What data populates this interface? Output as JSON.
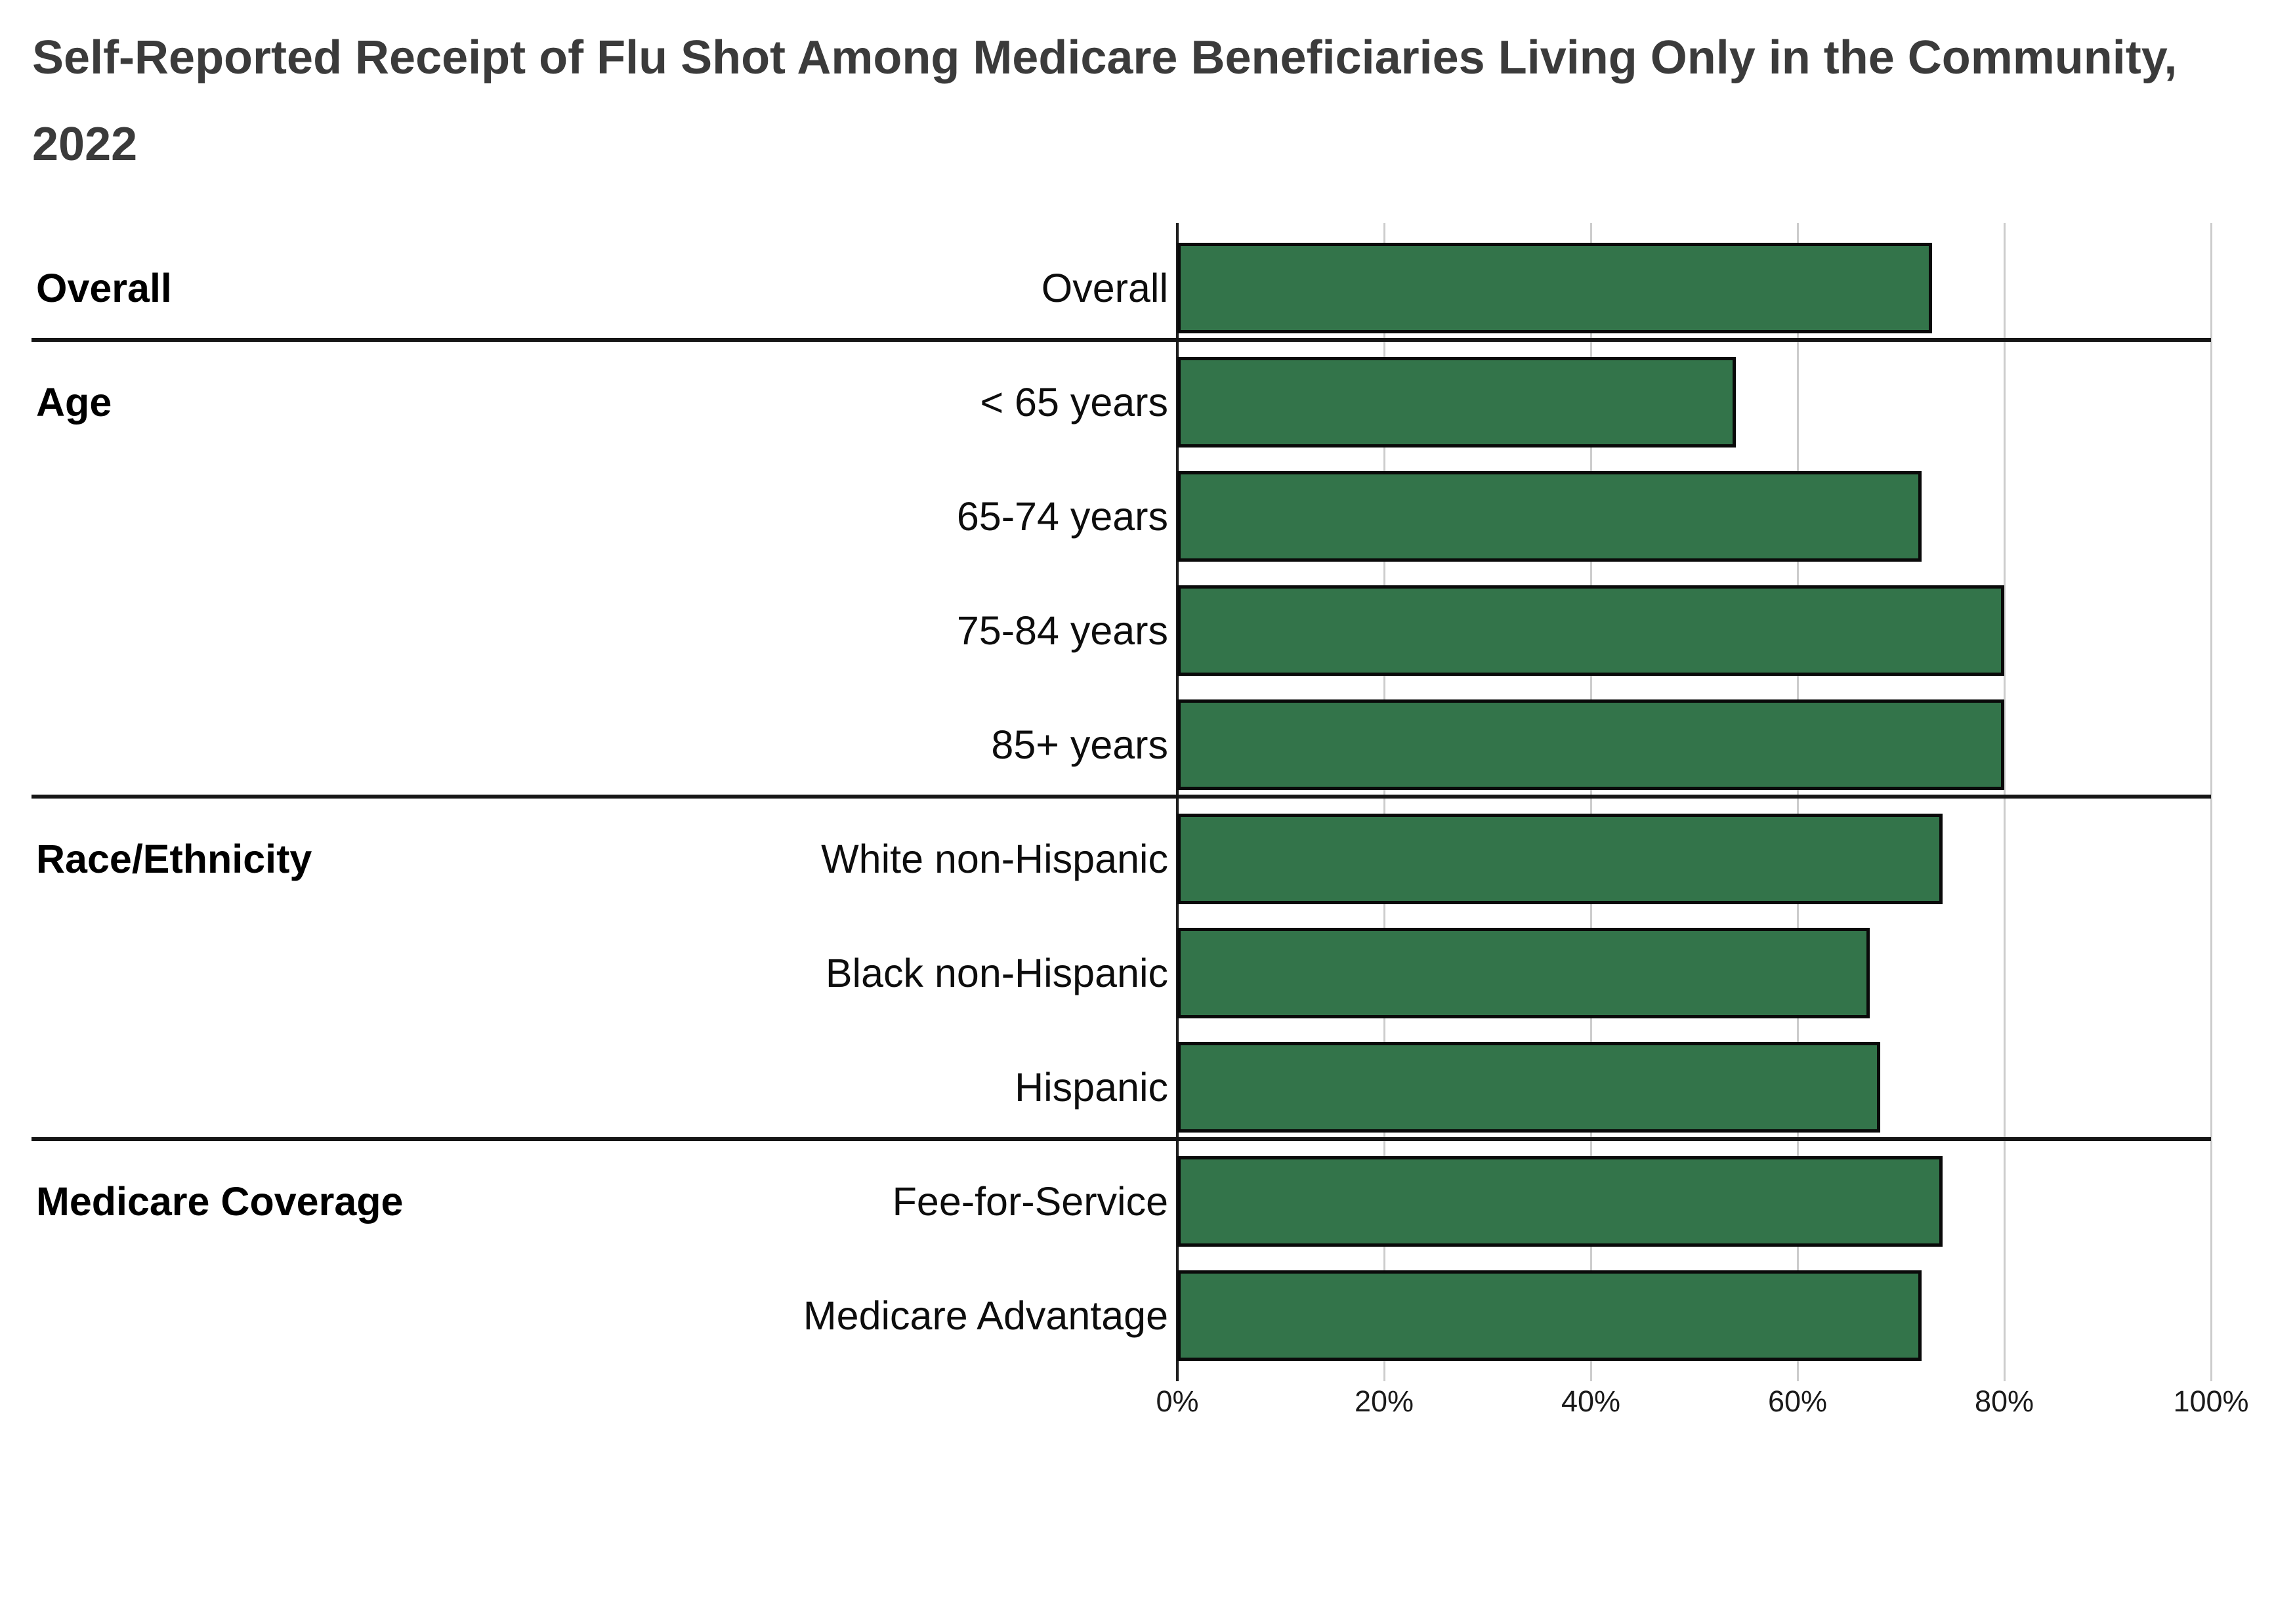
{
  "page": {
    "background": "#ffffff"
  },
  "title": {
    "text": "Self-Reported Receipt of Flu Shot Among Medicare Beneficiaries Living Only in the Community, 2022",
    "color": "#3b3b3b"
  },
  "chart_data": {
    "type": "bar",
    "orientation": "horizontal",
    "title": "Self-Reported Receipt of Flu Shot Among Medicare Beneficiaries Living Only in the Community, 2022",
    "unit": "%",
    "xlim": [
      0,
      100
    ],
    "x_ticks": [
      "0%",
      "20%",
      "40%",
      "60%",
      "80%",
      "100%"
    ],
    "grid": true,
    "legend": false,
    "bar_color": "#33744A",
    "bar_border_color": "#0a0a0a",
    "divider_color": "#161616",
    "gridline_color": "#cccccc",
    "axis_color": "#1f1f1f",
    "sections": [
      {
        "label": "Overall",
        "rows": [
          {
            "label": "Overall",
            "value": 73
          }
        ]
      },
      {
        "label": "Age",
        "rows": [
          {
            "label": "< 65 years",
            "value": 54
          },
          {
            "label": "65-74 years",
            "value": 72
          },
          {
            "label": "75-84 years",
            "value": 80
          },
          {
            "label": "85+ years",
            "value": 80
          }
        ]
      },
      {
        "label": "Race/Ethnicity",
        "rows": [
          {
            "label": "White non-Hispanic",
            "value": 74
          },
          {
            "label": "Black non-Hispanic",
            "value": 67
          },
          {
            "label": "Hispanic",
            "value": 68
          }
        ]
      },
      {
        "label": "Medicare Coverage",
        "rows": [
          {
            "label": "Fee-for-Service",
            "value": 74
          },
          {
            "label": "Medicare Advantage",
            "value": 72
          }
        ]
      }
    ]
  }
}
